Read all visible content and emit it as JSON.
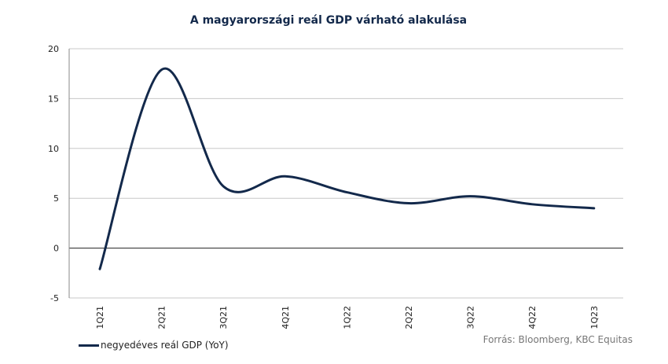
{
  "chart_data": {
    "type": "line",
    "title": "A magyarországi reál GDP várható alakulása",
    "categories": [
      "1Q21",
      "2Q21",
      "3Q21",
      "4Q21",
      "1Q22",
      "2Q22",
      "3Q22",
      "4Q22",
      "1Q23"
    ],
    "series": [
      {
        "name": "negyedéves reál GDP (YoY)",
        "values": [
          -2.1,
          17.9,
          6.2,
          7.2,
          5.6,
          4.5,
          5.2,
          4.4,
          4.0
        ],
        "color": "#13294b"
      }
    ],
    "ylim": [
      -5,
      20
    ],
    "yticks": [
      "-5",
      "0",
      "5",
      "10",
      "15",
      "20"
    ],
    "grid": true,
    "legend_position": "bottom-left"
  },
  "source": "Forrás: Bloomberg, KBC Equitas"
}
